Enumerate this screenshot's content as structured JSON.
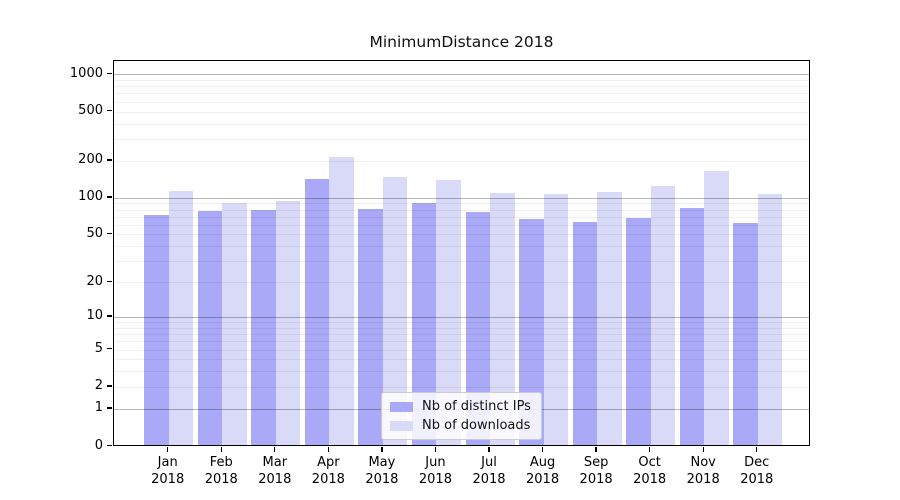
{
  "title": "MinimumDistance 2018",
  "colors": {
    "bar_distinct_ips": "#a9a9f7",
    "bar_downloads": "#d9d9f8",
    "grid_major": "rgba(0,0,0,0.28)",
    "grid_minor": "rgba(0,0,0,0.06)",
    "axis_frame": "#000000",
    "legend_border": "#cccccc"
  },
  "chart_data": {
    "type": "bar",
    "title": "MinimumDistance 2018",
    "yscale": "symlog (log1p)",
    "grid": "horizontal major (powers of 10, darker) + minor (faint), drawn over bars",
    "categories": [
      "Jan 2018",
      "Feb 2018",
      "Mar 2018",
      "Apr 2018",
      "May 2018",
      "Jun 2018",
      "Jul 2018",
      "Aug 2018",
      "Sep 2018",
      "Oct 2018",
      "Nov 2018",
      "Dec 2018"
    ],
    "x_tick_labels": {
      "line1": [
        "Jan",
        "Feb",
        "Mar",
        "Apr",
        "May",
        "Jun",
        "Jul",
        "Aug",
        "Sep",
        "Oct",
        "Nov",
        "Dec"
      ],
      "line2": "2018"
    },
    "series": [
      {
        "name": "Nb of distinct IPs",
        "color": "#a9a9f7",
        "values": [
          70,
          75,
          77,
          138,
          78,
          88,
          74,
          65,
          61,
          66,
          79,
          60
        ]
      },
      {
        "name": "Nb of downloads",
        "color": "#d9d9f8",
        "values": [
          110,
          87,
          90,
          207,
          142,
          135,
          105,
          103,
          107,
          119,
          160,
          104
        ]
      }
    ],
    "y_ticks": [
      0,
      1,
      2,
      5,
      10,
      20,
      50,
      100,
      200,
      500,
      1000
    ],
    "y_minor_gridlines": [
      2,
      3,
      4,
      5,
      6,
      7,
      8,
      9,
      20,
      30,
      40,
      50,
      60,
      70,
      80,
      90,
      200,
      300,
      400,
      500,
      600,
      700,
      800,
      900
    ],
    "y_major_gridlines": [
      1,
      10,
      100,
      1000
    ],
    "ylim": [
      0,
      1280
    ],
    "xlabel": "",
    "ylabel": "",
    "legend": {
      "position": "lower center of plot",
      "entries": [
        "Nb of distinct IPs",
        "Nb of downloads"
      ]
    }
  }
}
